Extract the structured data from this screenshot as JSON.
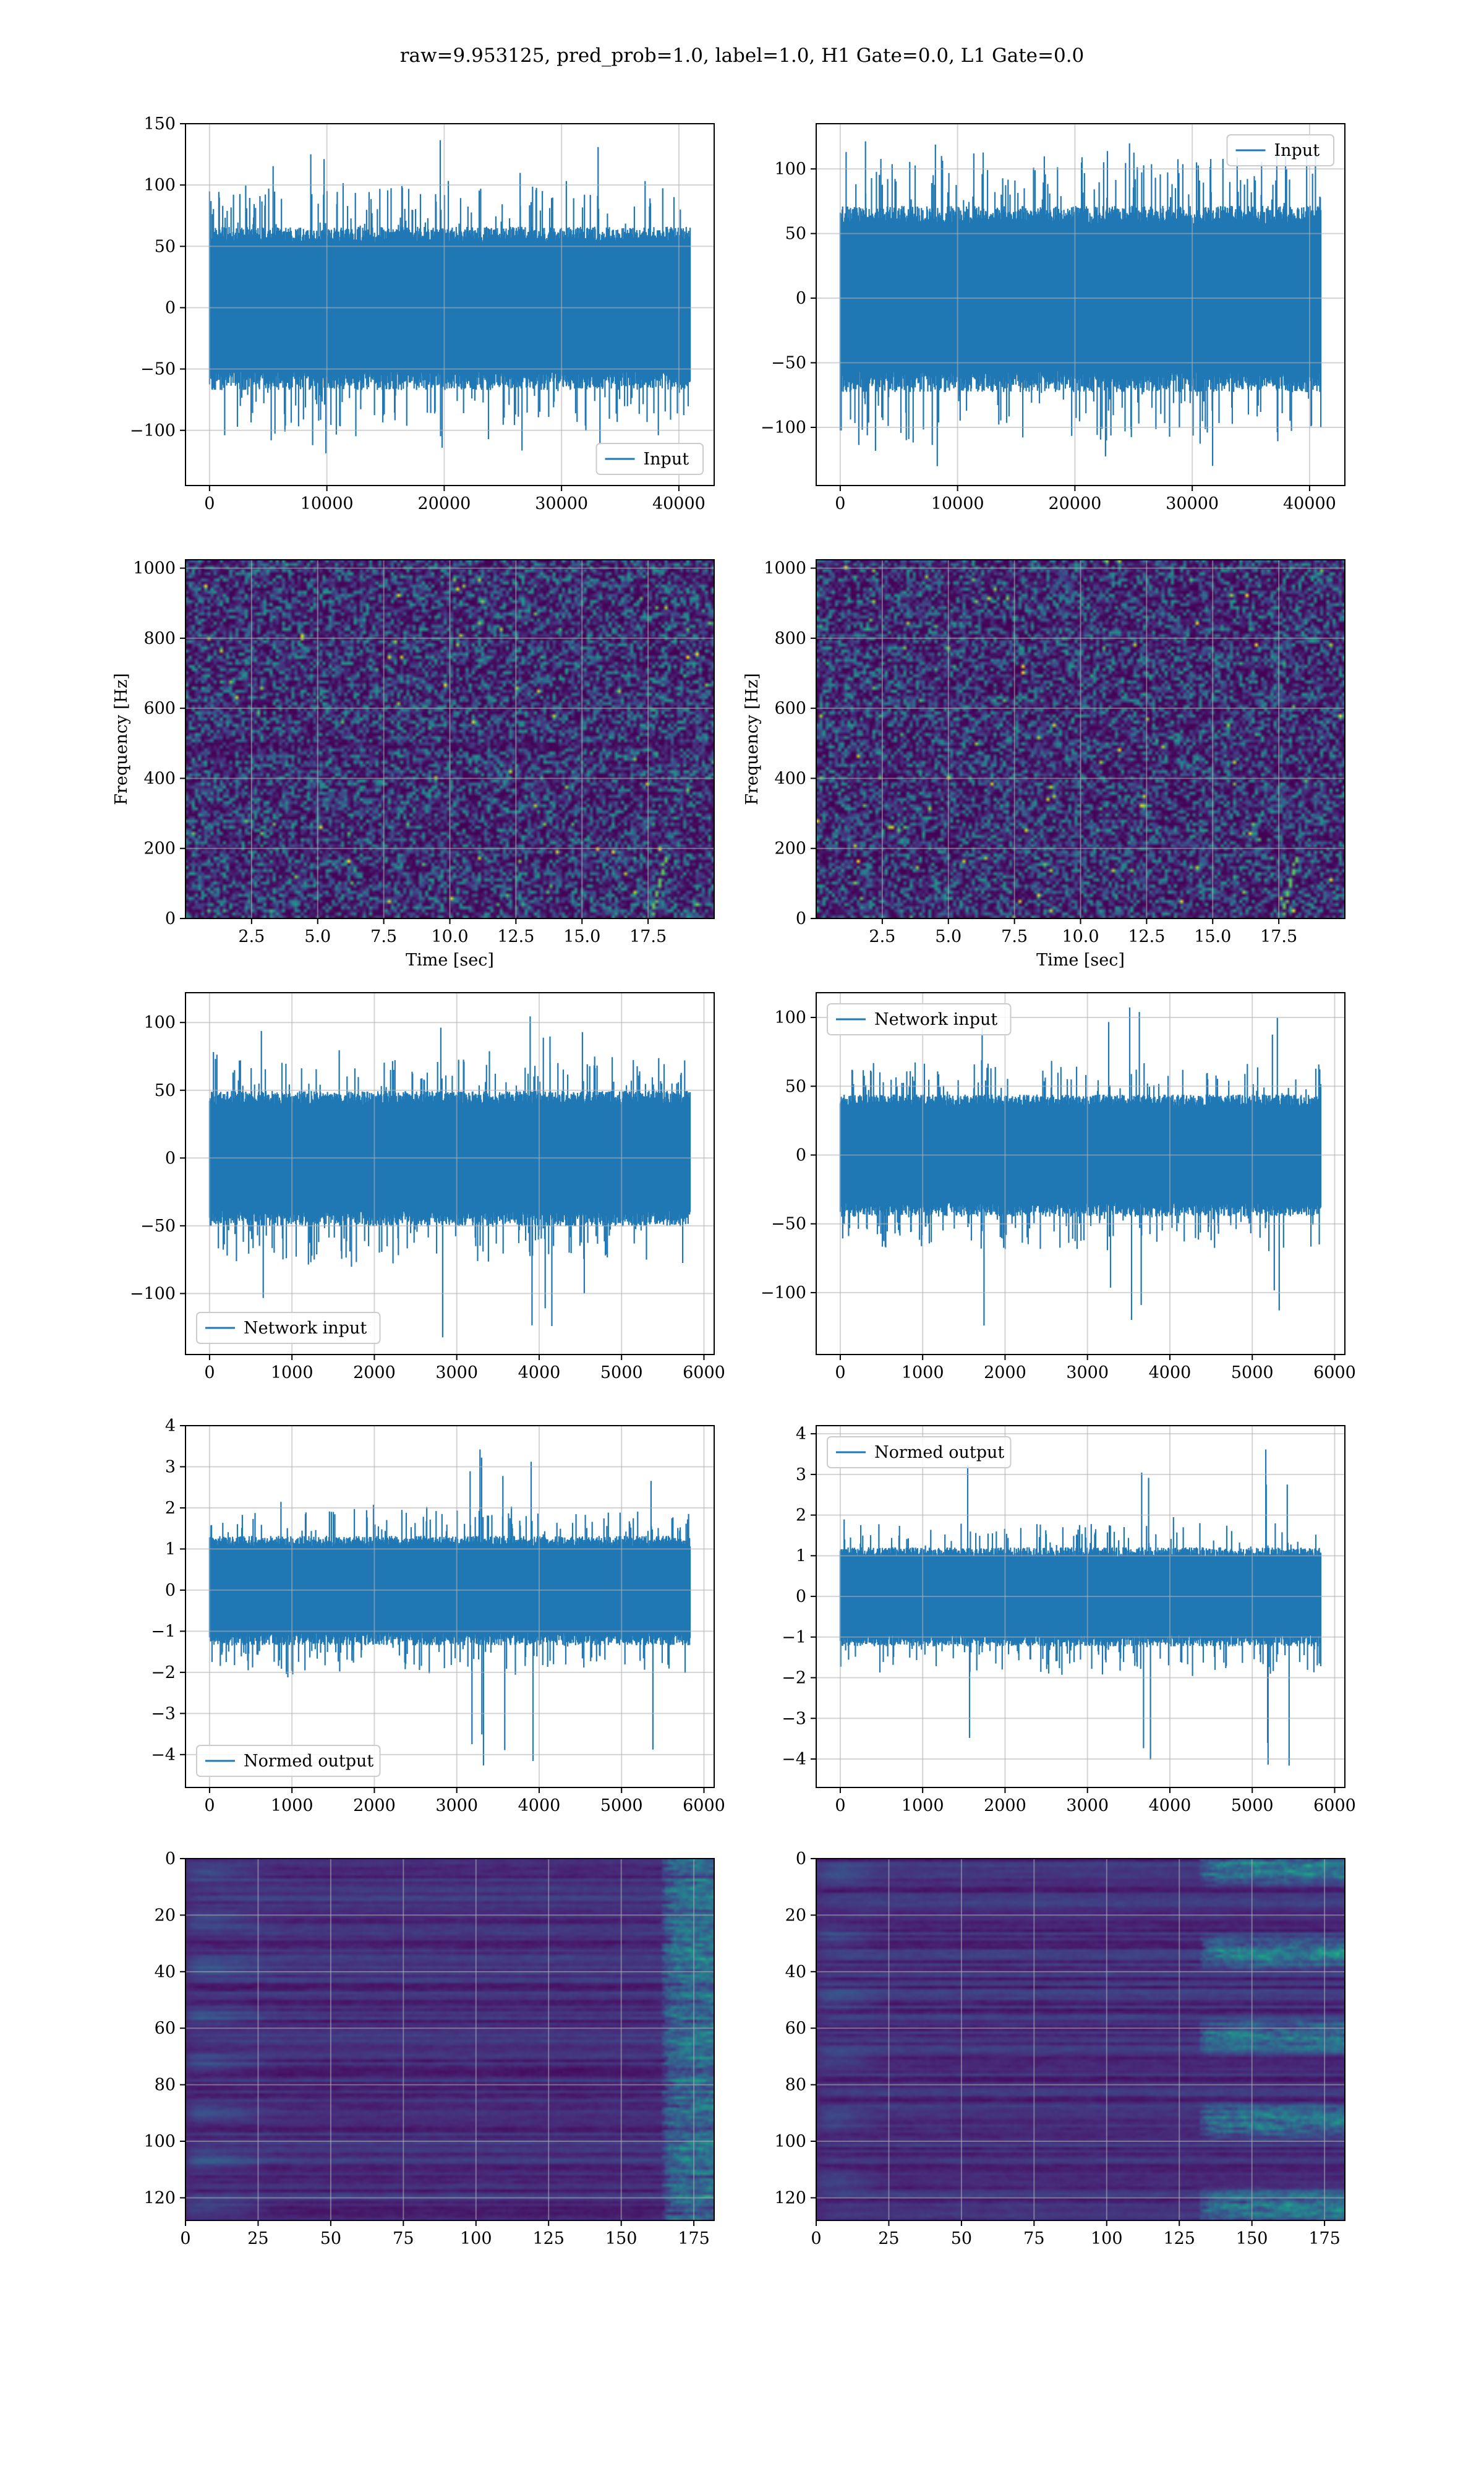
{
  "figure": {
    "suptitle": "raw=9.953125, pred_prob=1.0, label=1.0, H1 Gate=0.0, L1 Gate=0.0",
    "line_color": "#1f77b4",
    "colormap": "viridis"
  },
  "chart_data": [
    {
      "id": "raw-input-left",
      "type": "line",
      "series": [
        {
          "name": "Input",
          "n_points": 40960,
          "amplitude_typical": 60,
          "peak_max": 137,
          "peak_min": -131
        }
      ],
      "xlim": [
        -2048,
        43008
      ],
      "ylim": [
        -145,
        150
      ],
      "xticks": [
        0,
        10000,
        20000,
        30000,
        40000
      ],
      "yticks": [
        -100,
        -50,
        0,
        50,
        100,
        150
      ],
      "legend": "lower right",
      "grid": true
    },
    {
      "id": "raw-input-right",
      "type": "line",
      "series": [
        {
          "name": "Input",
          "n_points": 40960,
          "amplitude_typical": 65,
          "peak_max": 125,
          "peak_min": -133
        }
      ],
      "xlim": [
        -2048,
        43008
      ],
      "ylim": [
        -145,
        135
      ],
      "xticks": [
        0,
        10000,
        20000,
        30000,
        40000
      ],
      "yticks": [
        -100,
        -50,
        0,
        50,
        100
      ],
      "legend": "upper right",
      "grid": true
    },
    {
      "id": "spectrogram-left",
      "type": "heatmap",
      "xlabel": "Time [sec]",
      "ylabel": "Frequency [Hz]",
      "xlim": [
        0,
        20
      ],
      "ylim": [
        0,
        1024
      ],
      "xticks": [
        2.5,
        5.0,
        7.5,
        10.0,
        12.5,
        15.0,
        17.5
      ],
      "xtick_labels": [
        "2.5",
        "5.0",
        "7.5",
        "10.0",
        "12.5",
        "15.0",
        "17.5"
      ],
      "yticks": [
        0,
        200,
        400,
        600,
        800,
        1000
      ],
      "grid": true
    },
    {
      "id": "spectrogram-right",
      "type": "heatmap",
      "xlabel": "Time [sec]",
      "ylabel": "Frequency [Hz]",
      "xlim": [
        0,
        20
      ],
      "ylim": [
        0,
        1024
      ],
      "xticks": [
        2.5,
        5.0,
        7.5,
        10.0,
        12.5,
        15.0,
        17.5
      ],
      "xtick_labels": [
        "2.5",
        "5.0",
        "7.5",
        "10.0",
        "12.5",
        "15.0",
        "17.5"
      ],
      "yticks": [
        0,
        200,
        400,
        600,
        800,
        1000
      ],
      "grid": true
    },
    {
      "id": "network-input-left",
      "type": "line",
      "series": [
        {
          "name": "Network input",
          "n_points": 5832,
          "amplitude_typical": 45,
          "peak_max": 112,
          "peak_min": -133
        }
      ],
      "xlim": [
        -292,
        6124
      ],
      "ylim": [
        -145,
        122
      ],
      "xticks": [
        0,
        1000,
        2000,
        3000,
        4000,
        5000,
        6000
      ],
      "yticks": [
        -100,
        -50,
        0,
        50,
        100
      ],
      "legend": "lower left",
      "grid": true
    },
    {
      "id": "network-input-right",
      "type": "line",
      "series": [
        {
          "name": "Network input",
          "n_points": 5832,
          "amplitude_typical": 40,
          "peak_max": 116,
          "peak_min": -128
        }
      ],
      "xlim": [
        -292,
        6124
      ],
      "ylim": [
        -145,
        118
      ],
      "xticks": [
        0,
        1000,
        2000,
        3000,
        4000,
        5000,
        6000
      ],
      "yticks": [
        -100,
        -50,
        0,
        50,
        100
      ],
      "legend": "upper left",
      "grid": true
    },
    {
      "id": "normed-output-left",
      "type": "line",
      "series": [
        {
          "name": "Normed output",
          "n_points": 5832,
          "amplitude_typical": 1.2,
          "peak_max": 3.6,
          "peak_min": -4.4
        }
      ],
      "xlim": [
        -292,
        6124
      ],
      "ylim": [
        -4.8,
        4.0
      ],
      "xticks": [
        0,
        1000,
        2000,
        3000,
        4000,
        5000,
        6000
      ],
      "yticks": [
        -4,
        -3,
        -2,
        -1,
        0,
        1,
        2,
        3,
        4
      ],
      "legend": "lower left",
      "grid": true
    },
    {
      "id": "normed-output-right",
      "type": "line",
      "series": [
        {
          "name": "Normed output",
          "n_points": 5832,
          "amplitude_typical": 1.1,
          "peak_max": 3.8,
          "peak_min": -4.2
        }
      ],
      "xlim": [
        -292,
        6124
      ],
      "ylim": [
        -4.7,
        4.2
      ],
      "xticks": [
        0,
        1000,
        2000,
        3000,
        4000,
        5000,
        6000
      ],
      "yticks": [
        -4,
        -3,
        -2,
        -1,
        0,
        1,
        2,
        3,
        4
      ],
      "legend": "upper left",
      "grid": true
    },
    {
      "id": "feature-map-left",
      "type": "heatmap",
      "rows": 128,
      "cols": 182,
      "xlim": [
        0,
        182
      ],
      "ylim": [
        128,
        0
      ],
      "xticks": [
        0,
        25,
        50,
        75,
        100,
        125,
        150,
        175
      ],
      "yticks": [
        0,
        20,
        40,
        60,
        80,
        100,
        120
      ],
      "grid": true
    },
    {
      "id": "feature-map-right",
      "type": "heatmap",
      "rows": 128,
      "cols": 182,
      "xlim": [
        0,
        182
      ],
      "ylim": [
        128,
        0
      ],
      "xticks": [
        0,
        25,
        50,
        75,
        100,
        125,
        150,
        175
      ],
      "yticks": [
        0,
        20,
        40,
        60,
        80,
        100,
        120
      ],
      "grid": true
    }
  ]
}
